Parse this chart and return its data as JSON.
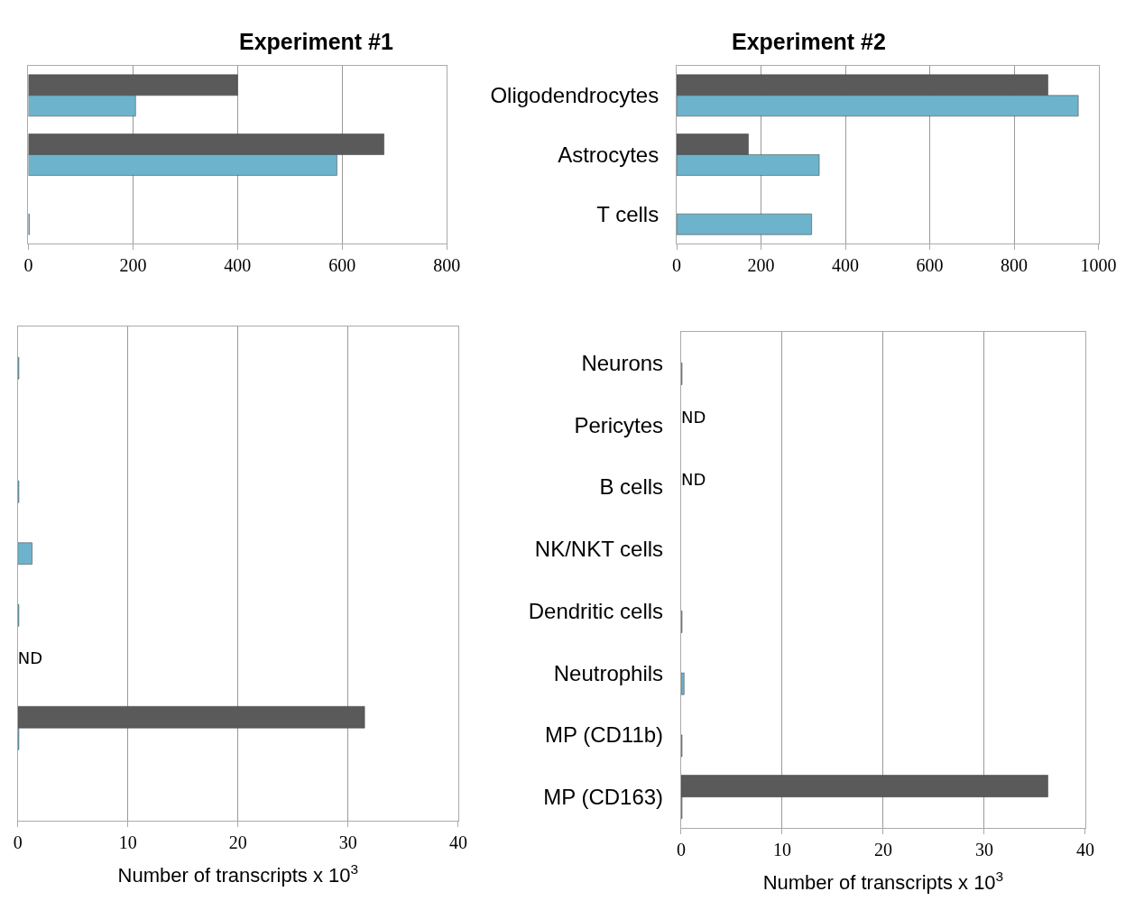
{
  "chart_data": [
    {
      "type": "bar",
      "orientation": "horizontal",
      "title": "Experiment #1",
      "categories": [
        null,
        null,
        null
      ],
      "series": [
        {
          "color": "#5a5a5a",
          "values": [
            400,
            680,
            null
          ]
        },
        {
          "color": "#6db3cb",
          "values": [
            205,
            590,
            2
          ]
        }
      ],
      "xlim": [
        0,
        800
      ],
      "xticks": [
        0,
        200,
        400,
        600,
        800
      ],
      "grid": "x",
      "tick_labels": "x"
    },
    {
      "type": "bar",
      "orientation": "horizontal",
      "title": "Experiment #2",
      "categories": [
        "Oligodendrocytes",
        "Astrocytes",
        "T cells"
      ],
      "series": [
        {
          "color": "#5a5a5a",
          "values": [
            880,
            170,
            null
          ]
        },
        {
          "color": "#6db3cb",
          "values": [
            952,
            338,
            320
          ]
        }
      ],
      "xlim": [
        0,
        1000
      ],
      "xticks": [
        0,
        200,
        400,
        600,
        800,
        1000
      ],
      "grid": "x"
    },
    {
      "type": "bar",
      "orientation": "horizontal",
      "xlabel": "Number of transcripts x 10$^{3}$",
      "categories": [
        null,
        null,
        null,
        null,
        null,
        null,
        null,
        null
      ],
      "series": [
        {
          "color": "#5a5a5a",
          "values": [
            null,
            null,
            null,
            null,
            null,
            null,
            31.5,
            null
          ],
          "value_labels": [
            null,
            null,
            null,
            null,
            null,
            "ND",
            null,
            null
          ]
        },
        {
          "color": "#6db3cb",
          "values": [
            0.1,
            null,
            0.1,
            1.3,
            0.1,
            null,
            0.1,
            null
          ]
        }
      ],
      "xlim": [
        0,
        40
      ],
      "xticks": [
        0,
        10,
        20,
        30,
        40
      ],
      "grid": "x",
      "tick_labels": "x"
    },
    {
      "type": "bar",
      "orientation": "horizontal",
      "xlabel": "Number of transcripts x 10$^{3}$",
      "categories": [
        "Neurons",
        "Pericytes",
        "B cells",
        "NK/NKT cells",
        "Dendritic cells",
        "Neutrophils",
        "MP (CD11b)",
        "MP (CD163)"
      ],
      "series": [
        {
          "color": "#5a5a5a",
          "values": [
            null,
            null,
            null,
            null,
            null,
            null,
            null,
            36.3
          ],
          "value_labels": [
            null,
            "ND",
            "ND",
            null,
            null,
            null,
            null,
            null
          ]
        },
        {
          "color": "#6db3cb",
          "values": [
            0.1,
            null,
            null,
            null,
            0.1,
            0.3,
            0.1,
            0.1
          ]
        }
      ],
      "xlim": [
        0,
        40
      ],
      "xticks": [
        0,
        10,
        20,
        30,
        40
      ],
      "grid": "x"
    }
  ]
}
